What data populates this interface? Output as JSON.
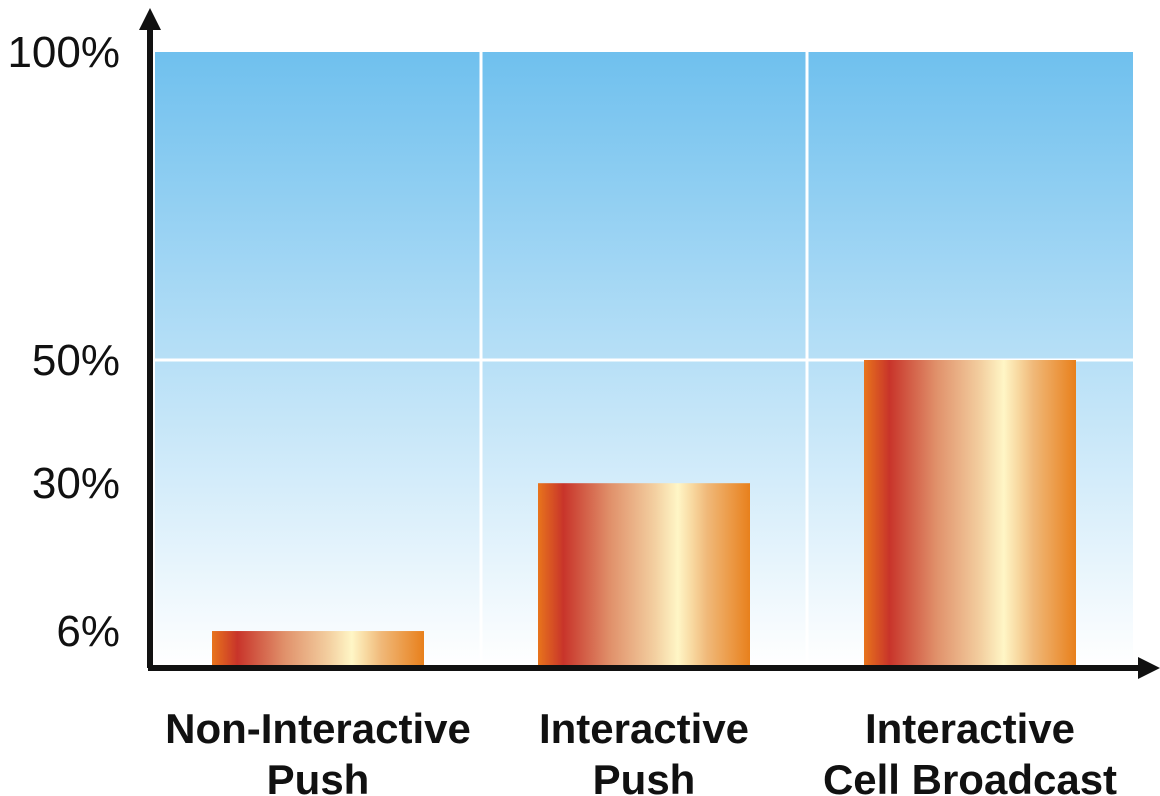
{
  "chart_data": {
    "type": "bar",
    "title": "",
    "xlabel": "",
    "ylabel": "",
    "categories": [
      [
        "Non-Interactive",
        "Push"
      ],
      [
        "Interactive",
        "Push"
      ],
      [
        "Interactive",
        "Cell Broadcast"
      ]
    ],
    "values": [
      6,
      30,
      50
    ],
    "ylim": [
      0,
      100
    ],
    "yticks": [
      {
        "value": 6,
        "label": "6%"
      },
      {
        "value": 30,
        "label": "30%"
      },
      {
        "value": 50,
        "label": "50%"
      },
      {
        "value": 100,
        "label": "100%"
      }
    ],
    "grid": true,
    "legend": "none"
  },
  "colors": {
    "plot_top": "#6fc0ee",
    "plot_bottom": "#ffffff",
    "grid": "#ffffff",
    "axis": "#111111",
    "bar_stops": [
      "#e8741c",
      "#c8342a",
      "#e0906a",
      "#f3cfa0",
      "#fff6c6",
      "#f0b878",
      "#e8801c"
    ]
  }
}
